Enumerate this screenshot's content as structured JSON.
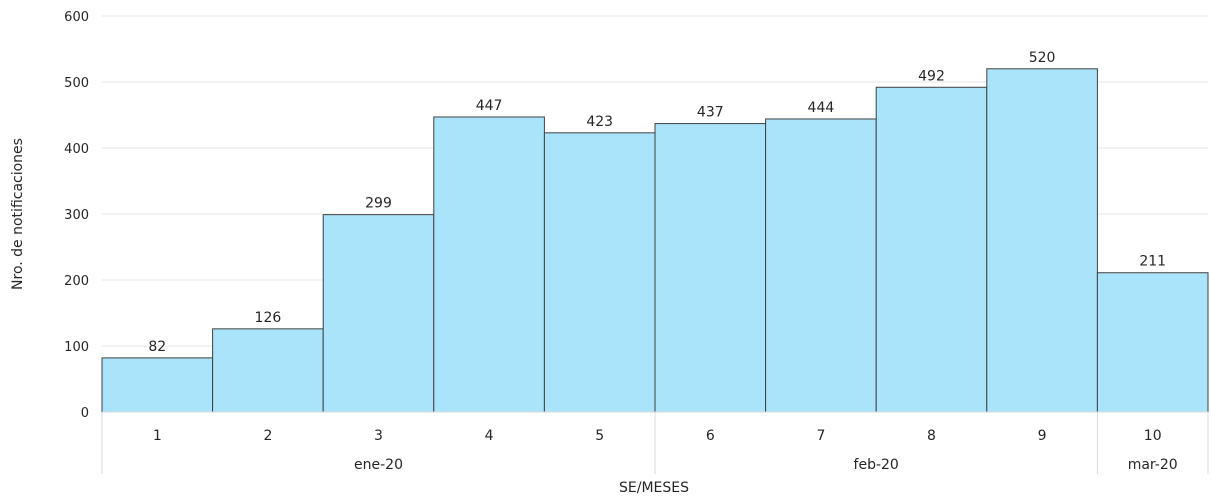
{
  "colors": {
    "bar_fill": "#A9E4FB",
    "bar_stroke": "#404040",
    "grid": "#E6E6E6",
    "axis_line": "#D9D9D9",
    "text": "#262626"
  },
  "chart_data": {
    "type": "bar",
    "title": "",
    "xlabel": "SE/MESES",
    "ylabel": "Nro. de notificaciones",
    "ylim": [
      0,
      600
    ],
    "yticks": [
      0,
      100,
      200,
      300,
      400,
      500,
      600
    ],
    "grid": true,
    "categories": [
      "1",
      "2",
      "3",
      "4",
      "5",
      "6",
      "7",
      "8",
      "9",
      "10"
    ],
    "values": [
      82,
      126,
      299,
      447,
      423,
      437,
      444,
      492,
      520,
      211
    ],
    "data_labels": [
      "82",
      "126",
      "299",
      "447",
      "423",
      "437",
      "444",
      "492",
      "520",
      "211"
    ],
    "month_groups": [
      {
        "label": "ene-20",
        "from": 0,
        "to": 4
      },
      {
        "label": "feb-20",
        "from": 5,
        "to": 8
      },
      {
        "label": "mar-20",
        "from": 9,
        "to": 9
      }
    ]
  }
}
